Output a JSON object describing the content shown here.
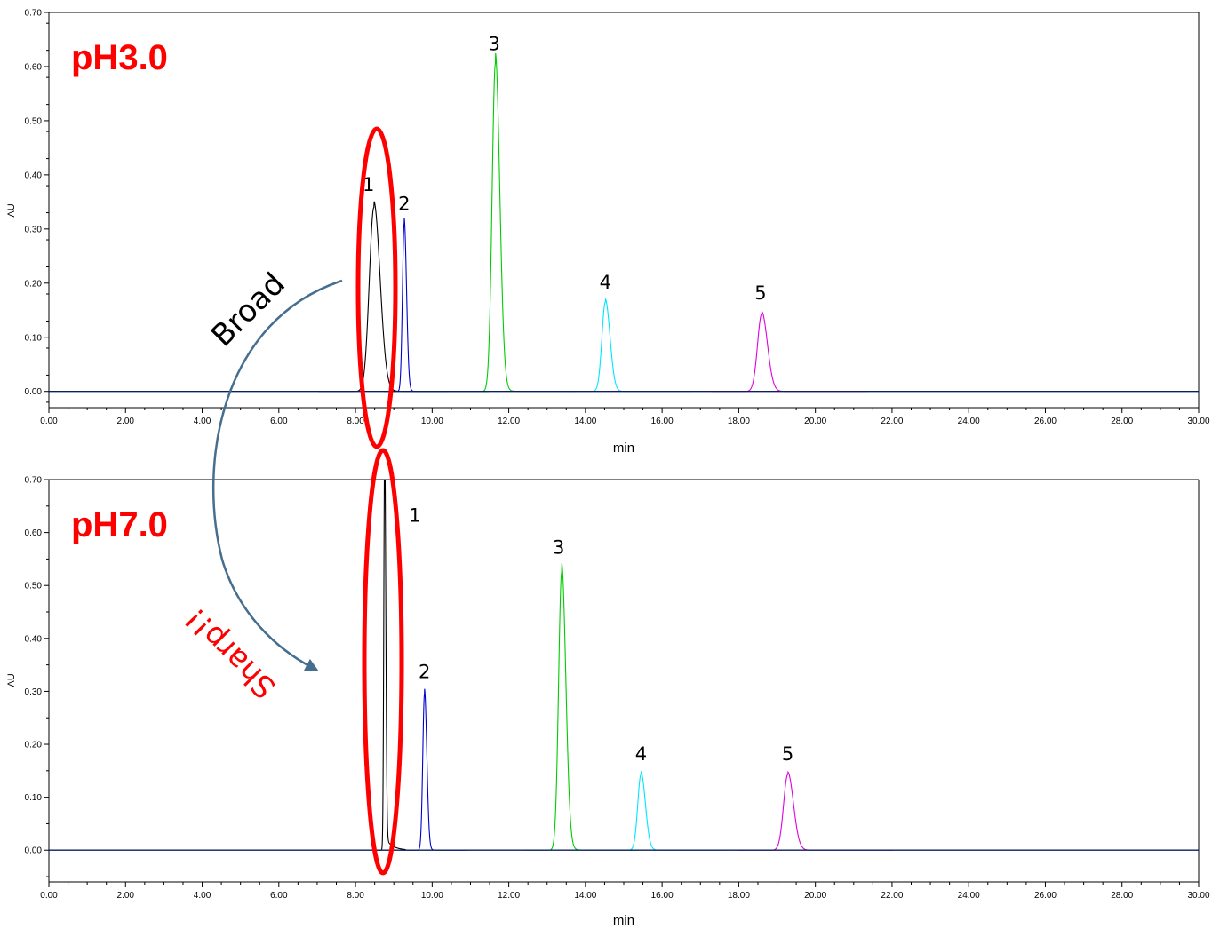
{
  "chart_data": [
    {
      "type": "line",
      "title": "pH3.0",
      "xlabel": "min",
      "ylabel": "AU",
      "xlim": [
        0,
        30
      ],
      "ylim": [
        -0.03,
        0.7
      ],
      "xticks": [
        "0.00",
        "2.00",
        "4.00",
        "6.00",
        "8.00",
        "10.00",
        "12.00",
        "14.00",
        "16.00",
        "18.00",
        "20.00",
        "22.00",
        "24.00",
        "26.00",
        "28.00",
        "30.00"
      ],
      "yticks": [
        "0.00",
        "0.10",
        "0.20",
        "0.30",
        "0.40",
        "0.50",
        "0.60",
        "0.70"
      ],
      "series": [
        {
          "color": "#000000",
          "peaks": [
            {
              "rt": 8.48,
              "height": 0.34,
              "sigma": 0.12,
              "tail": 0.05
            }
          ]
        },
        {
          "color": "#0000cc",
          "peaks": [
            {
              "rt": 9.27,
              "height": 0.31,
              "sigma": 0.045,
              "tail": 0.02
            }
          ]
        },
        {
          "color": "#00cc00",
          "peaks": [
            {
              "rt": 11.65,
              "height": 0.605,
              "sigma": 0.085,
              "tail": 0.04
            }
          ]
        },
        {
          "color": "#00e5ff",
          "peaks": [
            {
              "rt": 14.52,
              "height": 0.165,
              "sigma": 0.09,
              "tail": 0.03
            }
          ]
        },
        {
          "color": "#e000e0",
          "peaks": [
            {
              "rt": 18.6,
              "height": 0.143,
              "sigma": 0.11,
              "tail": 0.04
            }
          ]
        }
      ],
      "peak_labels": [
        {
          "text": "1",
          "x": 8.34,
          "y": 0.37
        },
        {
          "text": "2",
          "x": 9.27,
          "y": 0.335
        },
        {
          "text": "3",
          "x": 11.62,
          "y": 0.63
        },
        {
          "text": "4",
          "x": 14.52,
          "y": 0.19
        },
        {
          "text": "5",
          "x": 18.57,
          "y": 0.17
        }
      ]
    },
    {
      "type": "line",
      "title": "pH7.0",
      "xlabel": "min",
      "ylabel": "AU",
      "xlim": [
        0,
        30
      ],
      "ylim": [
        -0.06,
        0.7
      ],
      "xticks": [
        "0.00",
        "2.00",
        "4.00",
        "6.00",
        "8.00",
        "10.00",
        "12.00",
        "14.00",
        "16.00",
        "18.00",
        "20.00",
        "22.00",
        "24.00",
        "26.00",
        "28.00",
        "30.00"
      ],
      "yticks": [
        "0.00",
        "0.10",
        "0.20",
        "0.30",
        "0.40",
        "0.50",
        "0.60",
        "0.70"
      ],
      "series": [
        {
          "color": "#000000",
          "peaks": [
            {
              "rt": 8.76,
              "height": 0.75,
              "sigma": 0.022,
              "tail": 0.06
            }
          ]
        },
        {
          "color": "#0000cc",
          "peaks": [
            {
              "rt": 9.8,
              "height": 0.295,
              "sigma": 0.045,
              "tail": 0.02
            }
          ]
        },
        {
          "color": "#00cc00",
          "peaks": [
            {
              "rt": 13.38,
              "height": 0.525,
              "sigma": 0.08,
              "tail": 0.04
            }
          ]
        },
        {
          "color": "#00e5ff",
          "peaks": [
            {
              "rt": 15.45,
              "height": 0.143,
              "sigma": 0.085,
              "tail": 0.03
            }
          ]
        },
        {
          "color": "#e000e0",
          "peaks": [
            {
              "rt": 19.28,
              "height": 0.143,
              "sigma": 0.11,
              "tail": 0.04
            }
          ]
        }
      ],
      "peak_labels": [
        {
          "text": "1",
          "x": 9.55,
          "y": 0.62
        },
        {
          "text": "2",
          "x": 9.8,
          "y": 0.325
        },
        {
          "text": "3",
          "x": 13.3,
          "y": 0.56
        },
        {
          "text": "4",
          "x": 15.45,
          "y": 0.17
        },
        {
          "text": "5",
          "x": 19.28,
          "y": 0.17
        }
      ]
    }
  ],
  "annotations": {
    "broad": "Broad",
    "sharp": "Sharp!!",
    "highlight_color": "#ff0000",
    "arrow_color": "#466e8f"
  }
}
